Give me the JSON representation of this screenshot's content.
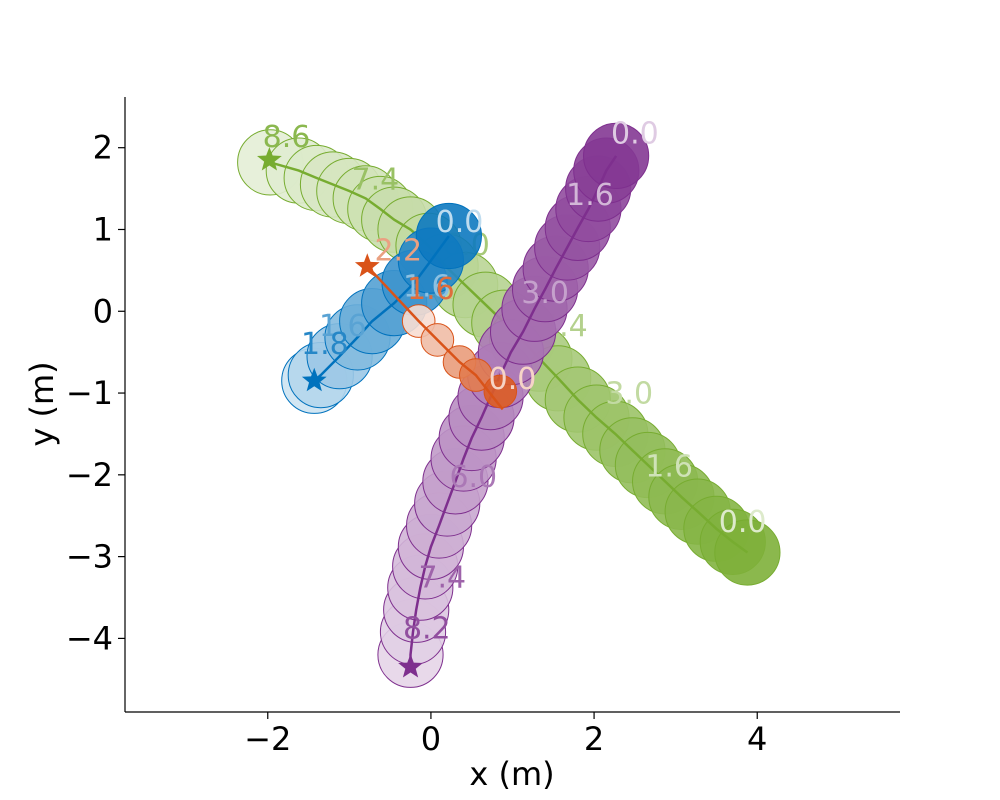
{
  "chart_data": {
    "type": "scatter",
    "xlabel": "x (m)",
    "ylabel": "y (m)",
    "xlim": [
      -3.75,
      5.75
    ],
    "ylim": [
      -4.9,
      2.62
    ],
    "xticks": [
      -2,
      0,
      2,
      4
    ],
    "yticks": [
      -4,
      -3,
      -2,
      -1,
      0,
      1,
      2
    ],
    "xtick_labels": [
      "−2",
      "0",
      "2",
      "4"
    ],
    "ytick_labels": [
      "−4",
      "−3",
      "−2",
      "−1",
      "0",
      "1",
      "2"
    ],
    "grid": false,
    "spines": "left-bottom",
    "series": [
      {
        "color": "#77AC30",
        "radius": 0.4,
        "start": [
          3.88,
          -2.95
        ],
        "goal": [
          -1.98,
          1.85
        ],
        "positions": [
          [
            3.88,
            -2.95
          ],
          [
            3.7,
            -2.82
          ],
          [
            3.5,
            -2.66
          ],
          [
            3.27,
            -2.45
          ],
          [
            3.07,
            -2.27
          ],
          [
            2.87,
            -2.08
          ],
          [
            2.66,
            -1.88
          ],
          [
            2.47,
            -1.7
          ],
          [
            2.26,
            -1.5
          ],
          [
            2.03,
            -1.3
          ],
          [
            1.8,
            -1.08
          ],
          [
            1.56,
            -0.82
          ],
          [
            1.33,
            -0.58
          ],
          [
            1.12,
            -0.35
          ],
          [
            0.9,
            -0.14
          ],
          [
            0.67,
            0.08
          ],
          [
            0.42,
            0.32
          ],
          [
            0.18,
            0.55
          ],
          [
            -0.03,
            0.8
          ],
          [
            -0.25,
            1.0
          ],
          [
            -0.45,
            1.12
          ],
          [
            -0.62,
            1.25
          ],
          [
            -0.8,
            1.38
          ],
          [
            -1.0,
            1.47
          ],
          [
            -1.2,
            1.55
          ],
          [
            -1.4,
            1.63
          ],
          [
            -1.62,
            1.72
          ],
          [
            -1.97,
            1.82
          ]
        ],
        "labels": [
          {
            "text": "0.0",
            "x": 3.82,
            "y": -2.7
          },
          {
            "text": "1.6",
            "x": 2.92,
            "y": -2.02
          },
          {
            "text": "3.0",
            "x": 2.43,
            "y": -1.13
          },
          {
            "text": "4.4",
            "x": 1.63,
            "y": -0.3
          },
          {
            "text": "6.0",
            "x": 0.43,
            "y": 0.69
          },
          {
            "text": "7.4",
            "x": -0.68,
            "y": 1.49
          },
          {
            "text": "8.6",
            "x": -1.77,
            "y": 2.01
          }
        ]
      },
      {
        "color": "#7E2F8E",
        "radius": 0.4,
        "start": [
          2.27,
          1.9
        ],
        "goal": [
          -0.25,
          -4.35
        ],
        "positions": [
          [
            2.27,
            1.9
          ],
          [
            2.15,
            1.72
          ],
          [
            2.05,
            1.5
          ],
          [
            1.93,
            1.25
          ],
          [
            1.8,
            1.02
          ],
          [
            1.67,
            0.78
          ],
          [
            1.53,
            0.52
          ],
          [
            1.4,
            0.27
          ],
          [
            1.27,
            0.03
          ],
          [
            1.13,
            -0.25
          ],
          [
            0.98,
            -0.5
          ],
          [
            0.85,
            -0.78
          ],
          [
            0.73,
            -1.05
          ],
          [
            0.62,
            -1.3
          ],
          [
            0.5,
            -1.55
          ],
          [
            0.4,
            -1.8
          ],
          [
            0.3,
            -2.08
          ],
          [
            0.2,
            -2.35
          ],
          [
            0.1,
            -2.62
          ],
          [
            0.0,
            -2.88
          ],
          [
            -0.07,
            -3.12
          ],
          [
            -0.13,
            -3.38
          ],
          [
            -0.18,
            -3.65
          ],
          [
            -0.22,
            -3.92
          ],
          [
            -0.25,
            -4.2
          ]
        ],
        "labels": [
          {
            "text": "0.0",
            "x": 2.5,
            "y": 2.05
          },
          {
            "text": "1.6",
            "x": 1.95,
            "y": 1.3
          },
          {
            "text": "3.0",
            "x": 1.4,
            "y": 0.1
          },
          {
            "text": "4.0",
            "x": 1.0,
            "y": -0.95
          },
          {
            "text": "6.0",
            "x": 0.52,
            "y": -2.15
          },
          {
            "text": "7.4",
            "x": 0.14,
            "y": -3.38
          },
          {
            "text": "8.2",
            "x": -0.05,
            "y": -4.0
          }
        ]
      },
      {
        "color": "#0072BD",
        "radius": 0.4,
        "start": [
          0.22,
          0.92
        ],
        "goal": [
          -1.43,
          -0.85
        ],
        "positions": [
          [
            0.22,
            0.92
          ],
          [
            0.0,
            0.62
          ],
          [
            -0.2,
            0.35
          ],
          [
            -0.45,
            0.1
          ],
          [
            -0.72,
            -0.12
          ],
          [
            -0.9,
            -0.32
          ],
          [
            -1.12,
            -0.55
          ],
          [
            -1.35,
            -0.78
          ],
          [
            -1.43,
            -0.85
          ]
        ],
        "labels": [
          {
            "text": "0.0",
            "x": 0.35,
            "y": 0.97
          },
          {
            "text": "1.6",
            "x": -0.05,
            "y": 0.18
          },
          {
            "text": "1.6",
            "x": -1.08,
            "y": -0.3
          },
          {
            "text": "1.8",
            "x": -1.3,
            "y": -0.52
          }
        ]
      },
      {
        "color": "#D95319",
        "radius": 0.2,
        "start": [
          0.88,
          -1.2
        ],
        "goal": [
          -0.78,
          0.55
        ],
        "positions": [
          [
            0.85,
            -0.98
          ],
          [
            0.55,
            -0.78
          ],
          [
            0.35,
            -0.62
          ],
          [
            0.08,
            -0.35
          ],
          [
            -0.15,
            -0.12
          ]
        ],
        "labels": [
          {
            "text": "0.0",
            "x": 1.0,
            "y": -0.95
          },
          {
            "text": "2.2",
            "x": -0.4,
            "y": 0.62
          },
          {
            "text": "1.6",
            "x": 0.0,
            "y": 0.15
          }
        ]
      }
    ]
  }
}
